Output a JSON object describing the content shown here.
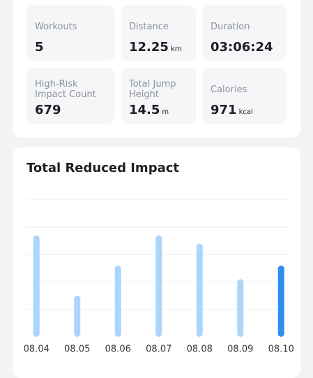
{
  "stats": [
    {
      "label": "Workouts",
      "value": "5"
    },
    {
      "label": "Distance",
      "value": "12.25",
      "unit": "km"
    },
    {
      "label": "Duration",
      "value": "03:06:24"
    },
    {
      "label": "High-Risk Impact Count",
      "value": "679"
    },
    {
      "label": "Total Jump Height",
      "value": "14.5",
      "unit": "m"
    },
    {
      "label": "Calories",
      "value": "971",
      "unit": "kcal"
    }
  ],
  "chart_data": {
    "type": "bar",
    "title": "Total Reduced Impact",
    "categories": [
      "08.04",
      "08.05",
      "08.06",
      "08.07",
      "08.08",
      "08.09",
      "08.10"
    ],
    "values": [
      3.7,
      1.5,
      2.6,
      3.7,
      3.4,
      2.1,
      2.6
    ],
    "colors": [
      "#acd5fb",
      "#acd5fb",
      "#acd5fb",
      "#acd5fb",
      "#acd5fb",
      "#acd5fb",
      "#2e8ef0"
    ],
    "ylim": [
      0,
      5
    ],
    "yticks": [
      1,
      2,
      3,
      4,
      5
    ],
    "grid": true
  }
}
